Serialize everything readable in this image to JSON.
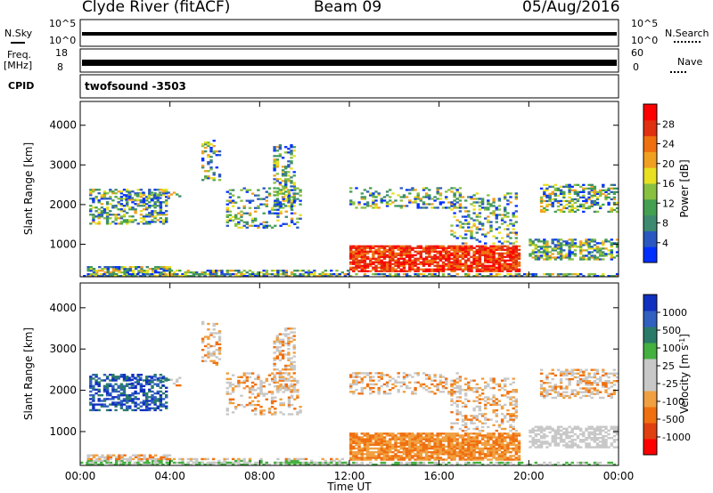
{
  "header": {
    "title": "Clyde River (fitACF)",
    "beam": "Beam 09",
    "date": "05/Aug/2016"
  },
  "panels": {
    "nsky_label": "N.Sky",
    "nsky_ticks": [
      "10^5",
      "10^0"
    ],
    "nsearch_label": "N.Search",
    "nsearch_ticks": [
      "10^5",
      "10^0"
    ],
    "freq_label_1": "Freq.",
    "freq_label_2": "[MHz]",
    "freq_ticks": [
      "18",
      "8"
    ],
    "nave_label": "Nave",
    "nave_ticks": [
      "60",
      "0"
    ],
    "cpid_label": "CPID",
    "cpid_value": "twofsound -3503"
  },
  "colors": {
    "power": [
      "#0030ff",
      "#2a58c0",
      "#3e8a70",
      "#44a050",
      "#88c040",
      "#e8e020",
      "#f0a020",
      "#f07010",
      "#e03010",
      "#ff0000"
    ],
    "velocity": [
      "#1030c0",
      "#3060c0",
      "#2a7a6a",
      "#44b040",
      "#c8c8c8",
      "#c8c8c8",
      "#f0a040",
      "#f07010",
      "#e04010",
      "#ff0000"
    ]
  },
  "chart_data": [
    {
      "type": "heatmap",
      "name": "power",
      "ylabel": "Slant Range [km]",
      "yticks": [
        "4000",
        "3000",
        "2000",
        "1000"
      ],
      "ylim": [
        180,
        4600
      ],
      "colorbar_label": "Power [dB]",
      "colorbar_ticks": [
        "28",
        "24",
        "20",
        "16",
        "12",
        "8",
        "4"
      ],
      "colorbar_range": [
        0,
        32
      ]
    },
    {
      "type": "heatmap",
      "name": "velocity",
      "ylabel": "Slant Range [km]",
      "yticks": [
        "4000",
        "3000",
        "2000",
        "1000"
      ],
      "ylim": [
        180,
        4600
      ],
      "colorbar_label": "Velocity [m s^-1]",
      "colorbar_ticks": [
        "1000",
        "500",
        "100",
        "25",
        "-25",
        "-100",
        "-500",
        "-1000"
      ]
    }
  ],
  "xaxis": {
    "label": "Time UT",
    "ticks": [
      "00:00",
      "04:00",
      "08:00",
      "12:00",
      "16:00",
      "20:00",
      "00:00"
    ]
  }
}
